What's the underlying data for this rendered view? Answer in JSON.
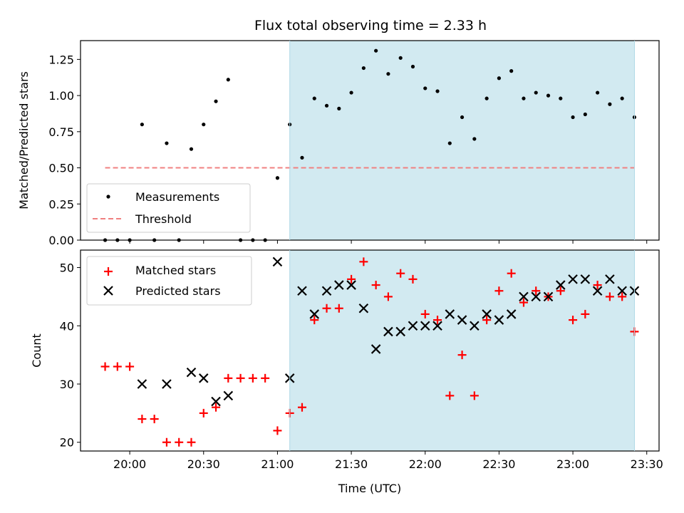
{
  "chart_data": [
    {
      "type": "scatter",
      "title": "Flux total observing time = 2.33 h",
      "xlabel": "",
      "ylabel": "Matched/Predicted stars",
      "ylim": [
        0,
        1.38
      ],
      "yticks": [
        "0.00",
        "0.25",
        "0.50",
        "0.75",
        "1.00",
        "1.25"
      ],
      "xlim": [
        "19:40",
        "23:35"
      ],
      "shaded_region": {
        "from": "21:05",
        "to": "23:25",
        "color": "#add8e6"
      },
      "legend_position": "lower-left",
      "series": [
        {
          "name": "Measurements",
          "marker": "dot",
          "color": "#000000",
          "x": [
            "19:50",
            "19:55",
            "20:00",
            "20:05",
            "20:10",
            "20:15",
            "20:20",
            "20:25",
            "20:30",
            "20:35",
            "20:40",
            "20:45",
            "20:50",
            "20:55",
            "21:00",
            "21:05",
            "21:10",
            "21:15",
            "21:20",
            "21:25",
            "21:30",
            "21:35",
            "21:40",
            "21:45",
            "21:50",
            "21:55",
            "22:00",
            "22:05",
            "22:10",
            "22:15",
            "22:20",
            "22:25",
            "22:30",
            "22:35",
            "22:40",
            "22:45",
            "22:50",
            "22:55",
            "23:00",
            "23:05",
            "23:10",
            "23:15",
            "23:20",
            "23:25"
          ],
          "y": [
            0,
            0,
            0,
            0.8,
            0,
            0.67,
            0,
            0.63,
            0.8,
            0.96,
            1.11,
            0,
            0,
            0,
            0.43,
            0.8,
            0.57,
            0.98,
            0.93,
            0.91,
            1.02,
            1.19,
            1.31,
            1.15,
            1.26,
            1.2,
            1.05,
            1.03,
            0.67,
            0.85,
            0.7,
            0.98,
            1.12,
            1.17,
            0.98,
            1.02,
            1.0,
            0.98,
            0.85,
            0.87,
            1.02,
            0.94,
            0.98,
            0.85
          ]
        },
        {
          "name": "Threshold",
          "marker": "dashed-line",
          "color": "#f08080",
          "x": [
            "19:50",
            "23:25"
          ],
          "y": [
            0.5,
            0.5
          ]
        }
      ]
    },
    {
      "type": "scatter",
      "title": "",
      "xlabel": "Time (UTC)",
      "ylabel": "Count",
      "ylim": [
        18.5,
        53
      ],
      "yticks": [
        "20",
        "30",
        "40",
        "50"
      ],
      "xlim": [
        "19:40",
        "23:35"
      ],
      "xticks": [
        "20:00",
        "20:30",
        "21:00",
        "21:30",
        "22:00",
        "22:30",
        "23:00",
        "23:30"
      ],
      "shaded_region": {
        "from": "21:05",
        "to": "23:25",
        "color": "#add8e6"
      },
      "legend_position": "top-left",
      "series": [
        {
          "name": "Matched stars",
          "marker": "plus",
          "color": "#ff0000",
          "x": [
            "19:50",
            "19:55",
            "20:00",
            "20:05",
            "20:10",
            "20:15",
            "20:20",
            "20:25",
            "20:30",
            "20:35",
            "20:40",
            "20:45",
            "20:50",
            "20:55",
            "21:00",
            "21:05",
            "21:10",
            "21:15",
            "21:20",
            "21:25",
            "21:30",
            "21:35",
            "21:40",
            "21:45",
            "21:50",
            "21:55",
            "22:00",
            "22:05",
            "22:10",
            "22:15",
            "22:20",
            "22:25",
            "22:30",
            "22:35",
            "22:40",
            "22:45",
            "22:50",
            "22:55",
            "23:00",
            "23:05",
            "23:10",
            "23:15",
            "23:20",
            "23:25"
          ],
          "y": [
            33,
            33,
            33,
            24,
            24,
            20,
            20,
            20,
            25,
            26,
            31,
            31,
            31,
            31,
            22,
            25,
            26,
            41,
            43,
            43,
            48,
            51,
            47,
            45,
            49,
            48,
            42,
            41,
            28,
            35,
            28,
            41,
            46,
            49,
            44,
            46,
            45,
            46,
            41,
            42,
            47,
            45,
            45,
            39
          ]
        },
        {
          "name": "Predicted stars",
          "marker": "x",
          "color": "#000000",
          "x": [
            "20:05",
            "20:15",
            "20:25",
            "20:30",
            "20:35",
            "20:40",
            "21:00",
            "21:05",
            "21:10",
            "21:15",
            "21:20",
            "21:25",
            "21:30",
            "21:35",
            "21:40",
            "21:45",
            "21:50",
            "21:55",
            "22:00",
            "22:05",
            "22:10",
            "22:15",
            "22:20",
            "22:25",
            "22:30",
            "22:35",
            "22:40",
            "22:45",
            "22:50",
            "22:55",
            "23:00",
            "23:05",
            "23:10",
            "23:15",
            "23:20",
            "23:25"
          ],
          "y": [
            30,
            30,
            32,
            31,
            27,
            28,
            51,
            31,
            46,
            42,
            46,
            47,
            47,
            43,
            36,
            39,
            39,
            40,
            40,
            40,
            42,
            41,
            40,
            42,
            41,
            42,
            45,
            45,
            45,
            47,
            48,
            48,
            46,
            48,
            46,
            46
          ]
        }
      ]
    }
  ]
}
